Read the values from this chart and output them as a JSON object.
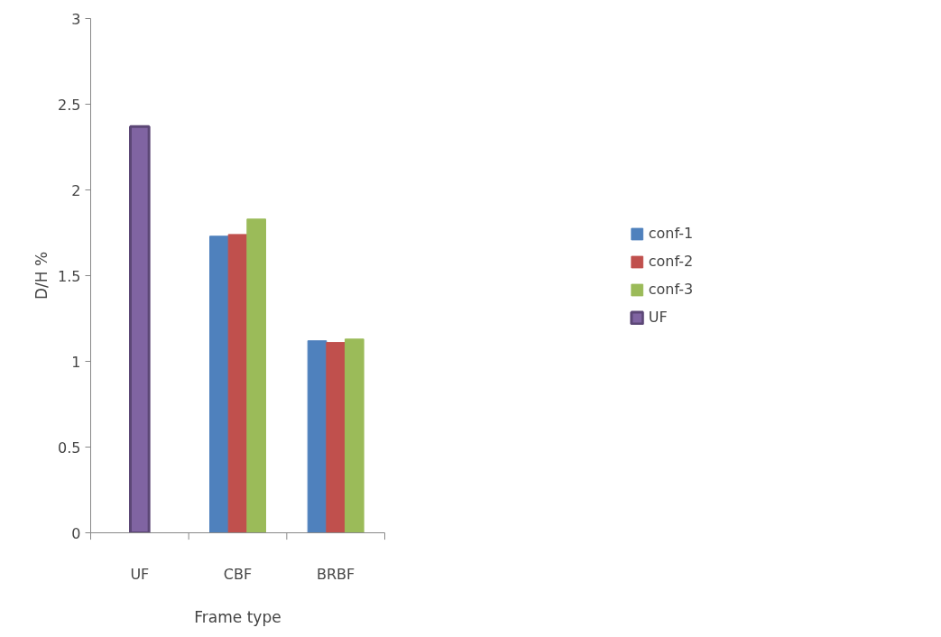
{
  "chart_data": {
    "type": "bar",
    "xlabel": "Frame type",
    "ylabel": "D/H %",
    "categories": [
      "UF",
      "CBF",
      "BRBF"
    ],
    "series": [
      {
        "name": "conf-1",
        "color": "#4f81bd",
        "values": [
          null,
          1.73,
          1.12
        ]
      },
      {
        "name": "conf-2",
        "color": "#c0504d",
        "values": [
          null,
          1.74,
          1.11
        ]
      },
      {
        "name": "conf-3",
        "color": "#9bbb59",
        "values": [
          null,
          1.83,
          1.13
        ]
      },
      {
        "name": "UF",
        "color": "#8064a2",
        "values": [
          2.37,
          null,
          null
        ]
      }
    ],
    "ylim": [
      0,
      3
    ],
    "yticks": [
      0,
      0.5,
      1,
      1.5,
      2,
      2.5,
      3
    ],
    "grid": false,
    "legend": "right"
  }
}
